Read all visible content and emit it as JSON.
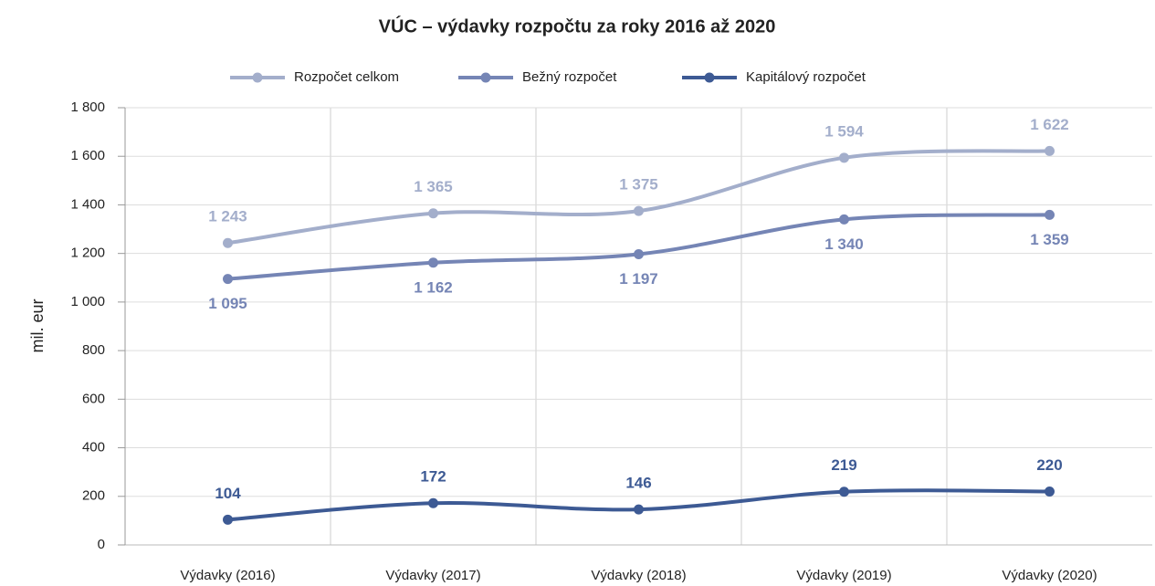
{
  "chart_data": {
    "type": "line",
    "title": "VÚC – výdavky rozpočtu za roky 2016 až 2020",
    "y_label": "mil. eur",
    "categories": [
      "Výdavky (2016)",
      "Výdavky (2017)",
      "Výdavky (2018)",
      "Výdavky (2019)",
      "Výdavky (2020)"
    ],
    "series": [
      {
        "name": "Rozpočet celkom",
        "color": "#a3aecb",
        "values": [
          1243,
          1365,
          1375,
          1594,
          1622
        ],
        "value_labels": [
          "1 243",
          "1 365",
          "1 375",
          "1 594",
          "1 622"
        ]
      },
      {
        "name": "Bežný rozpočet",
        "color": "#7585b5",
        "values": [
          1095,
          1162,
          1197,
          1340,
          1359
        ],
        "value_labels": [
          "1 095",
          "1 162",
          "1 197",
          "1 340",
          "1 359"
        ]
      },
      {
        "name": "Kapitálový rozpočet",
        "color": "#3d5a94",
        "values": [
          104,
          172,
          146,
          219,
          220
        ]
      }
    ],
    "ylim": [
      0,
      1800
    ],
    "yticks": [
      0,
      200,
      400,
      600,
      800,
      {
        "value": 1000,
        "label": "1 000"
      },
      {
        "value": 1200,
        "label": "1 200"
      },
      {
        "value": 1400,
        "label": "1 400"
      },
      {
        "value": 1600,
        "label": "1 600"
      },
      {
        "value": 1800,
        "label": "1 800"
      }
    ],
    "grid": true,
    "legend": "top"
  }
}
